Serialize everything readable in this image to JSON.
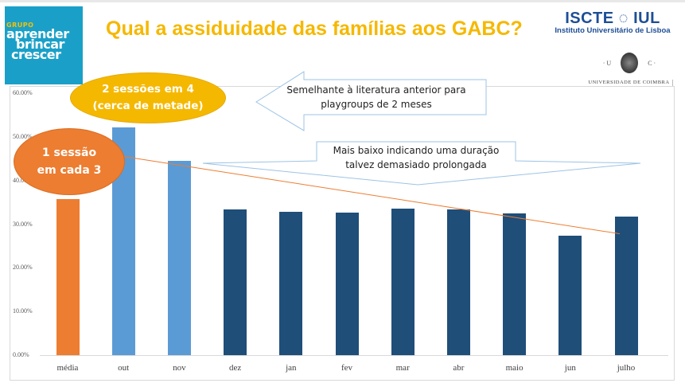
{
  "header": {
    "title": "Qual a assiduidade das famílias aos GABC?",
    "logo_left": {
      "grupo": "GRUPO",
      "line1": "aprender",
      "line2": "brincar",
      "line3": "crescer"
    },
    "logo_iscte": {
      "name": "ISCTE ◌ IUL",
      "subtitle": "Instituto Universitário de Lisboa"
    },
    "logo_uc": {
      "left": "· U",
      "right": "C ·",
      "name": "UNIVERSIDADE DE COIMBRA"
    }
  },
  "annotations": {
    "yellow_ellipse": {
      "line1": "2 sessões em 4",
      "line2": "(cerca de metade)"
    },
    "orange_ellipse": {
      "line1": "1 sessão",
      "line2": "em cada 3"
    },
    "left_arrow": {
      "line1": "Semelhante à literatura anterior para",
      "line2": "playgroups de 2 meses"
    },
    "down_arrow": {
      "line1": "Mais baixo indicando uma duração",
      "line2": "talvez demasiado prolongada"
    }
  },
  "colors": {
    "title": "#f5b800",
    "media_bar": "#ed7d31",
    "early_bars": "#5b9bd5",
    "late_bars": "#1f4e79",
    "trendline": "#ed7d31",
    "logo_bg": "#1aa0c8"
  },
  "chart_data": {
    "type": "bar",
    "title": "Qual a assiduidade das famílias aos GABC?",
    "xlabel": "",
    "ylabel": "",
    "categories": [
      "média",
      "out",
      "nov",
      "dez",
      "jan",
      "fev",
      "mar",
      "abr",
      "maio",
      "jun",
      "julho"
    ],
    "values": [
      35.8,
      52.2,
      44.5,
      33.4,
      32.8,
      32.7,
      33.6,
      33.4,
      32.5,
      27.4,
      31.8
    ],
    "value_format": "percent",
    "ylim": [
      0,
      60
    ],
    "yticks": [
      "0.00%",
      "10.00%",
      "20.00%",
      "30.00%",
      "40.00%",
      "50.00%",
      "60.00%"
    ],
    "grid": false,
    "legend": "none",
    "trendline": {
      "type": "linear",
      "from_category": "out",
      "to_category": "julho",
      "start": 45.5,
      "end": 27.8
    }
  }
}
